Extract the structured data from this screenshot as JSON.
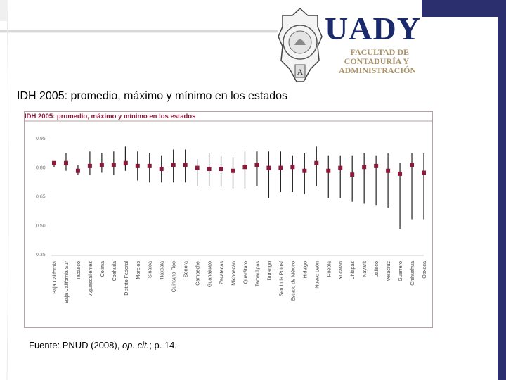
{
  "header": {
    "brand": "UADY",
    "faculty_lines": [
      "FACULTAD DE",
      "CONTADURÍA Y",
      "ADMINISTRACIÓN"
    ],
    "seal_text": "UNIVERSIDAD AUTÓNOMA DE YUCATÁN"
  },
  "slide": {
    "title": "IDH 2005: promedio, máximo y mínimo en los estados",
    "source_prefix": "Fuente: PNUD (2008), ",
    "source_italic": "op. cit.",
    "source_suffix": "; p. 14."
  },
  "colors": {
    "marker": "#8b1a3a",
    "whisker": "#222222",
    "frame": "#b8a0a8",
    "header_band": "#2b2f6e"
  },
  "chart_data": {
    "type": "range",
    "title": "IDH 2005: promedio, máximo y mínimo en los estados",
    "xlabel": "",
    "ylabel": "",
    "ylim": [
      0.35,
      0.95
    ],
    "yticks": [
      "0.95",
      "0.80",
      "0.65",
      "0.50",
      "0.35"
    ],
    "ytick_values": [
      0.95,
      0.8,
      0.65,
      0.5,
      0.35
    ],
    "grid": false,
    "legend": "none",
    "categories": [
      "Baja California",
      "Baja California Sur",
      "Tabasco",
      "Aguascalientes",
      "Colima",
      "Coahuila",
      "Distrito Federal",
      "Morelos",
      "Sinaloa",
      "Tlaxcala",
      "Quintana Roo",
      "Sonora",
      "Campeche",
      "Guanajuato",
      "Zacatecas",
      "Michoacán",
      "Querétaro",
      "Tamaulipas",
      "Durango",
      "San Luis Potosí",
      "Estado de México",
      "Hidalgo",
      "Nuevo León",
      "Puebla",
      "Yucatán",
      "Chiapas",
      "Nayarit",
      "Jalisco",
      "Veracruz",
      "Guerrero",
      "Chihuahua",
      "Oaxaca"
    ],
    "series": [
      {
        "name": "máximo",
        "values": [
          0.83,
          0.87,
          0.81,
          0.88,
          0.87,
          0.88,
          0.905,
          0.88,
          0.87,
          0.86,
          0.89,
          0.89,
          0.84,
          0.87,
          0.86,
          0.85,
          0.88,
          0.88,
          0.88,
          0.88,
          0.86,
          0.87,
          0.905,
          0.86,
          0.86,
          0.86,
          0.87,
          0.86,
          0.87,
          0.82,
          0.87,
          0.87
        ]
      },
      {
        "name": "promedio",
        "values": [
          0.82,
          0.82,
          0.78,
          0.805,
          0.81,
          0.81,
          0.82,
          0.805,
          0.805,
          0.79,
          0.81,
          0.81,
          0.795,
          0.79,
          0.79,
          0.78,
          0.8,
          0.81,
          0.795,
          0.795,
          0.8,
          0.78,
          0.82,
          0.78,
          0.795,
          0.76,
          0.8,
          0.805,
          0.78,
          0.765,
          0.81,
          0.77
        ]
      },
      {
        "name": "mínimo",
        "values": [
          0.8,
          0.78,
          0.76,
          0.76,
          0.77,
          0.76,
          0.78,
          0.73,
          0.72,
          0.72,
          0.72,
          0.72,
          0.7,
          0.7,
          0.7,
          0.69,
          0.69,
          0.7,
          0.64,
          0.67,
          0.67,
          0.66,
          0.7,
          0.64,
          0.64,
          0.62,
          0.61,
          0.6,
          0.59,
          0.48,
          0.53,
          0.53
        ]
      }
    ]
  }
}
